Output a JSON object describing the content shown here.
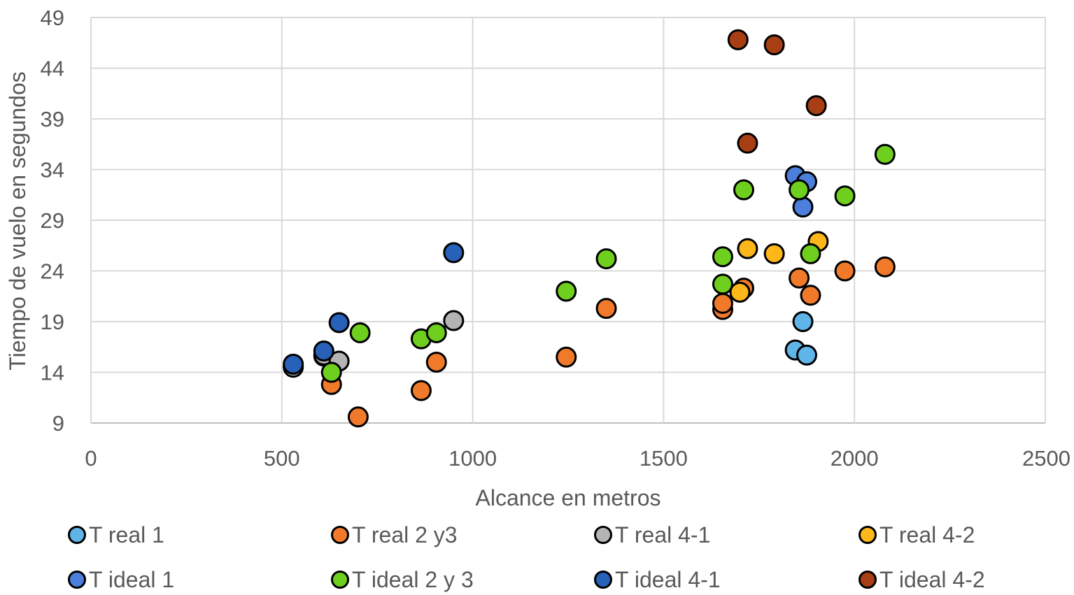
{
  "chart_data": {
    "type": "scatter",
    "title": "",
    "xlabel": "Alcance en metros",
    "ylabel": "Tiempo de vuelo en segundos",
    "xlim": [
      0,
      2500
    ],
    "ylim": [
      9,
      49
    ],
    "x_ticks": [
      "0",
      "500",
      "1000",
      "1500",
      "2000",
      "2500"
    ],
    "y_ticks": [
      "9",
      "14",
      "19",
      "24",
      "29",
      "34",
      "39",
      "44",
      "49"
    ],
    "grid": true,
    "legend_position": "bottom",
    "series": [
      {
        "name": "T real 1",
        "color": "#5fb4e8",
        "points": [
          [
            1845,
            16.2
          ],
          [
            1865,
            19.0
          ],
          [
            1875,
            15.7
          ]
        ]
      },
      {
        "name": "T real 2 y3",
        "color": "#f07a2a",
        "points": [
          [
            530,
            14.6
          ],
          [
            610,
            15.6
          ],
          [
            630,
            12.8
          ],
          [
            700,
            9.6
          ],
          [
            865,
            12.2
          ],
          [
            905,
            15.0
          ],
          [
            1245,
            15.5
          ],
          [
            1350,
            20.3
          ],
          [
            1655,
            20.2
          ],
          [
            1655,
            20.8
          ],
          [
            1710,
            22.3
          ],
          [
            1855,
            23.3
          ],
          [
            1885,
            21.6
          ],
          [
            1975,
            24.0
          ],
          [
            2080,
            24.4
          ]
        ]
      },
      {
        "name": "T real 4-1",
        "color": "#b4b4b4",
        "points": [
          [
            530,
            14.5
          ],
          [
            610,
            15.7
          ],
          [
            650,
            15.1
          ],
          [
            950,
            19.1
          ]
        ]
      },
      {
        "name": "T real 4-2",
        "color": "#fdb71a",
        "points": [
          [
            1700,
            21.9
          ],
          [
            1720,
            26.2
          ],
          [
            1790,
            25.7
          ],
          [
            1905,
            26.9
          ]
        ]
      },
      {
        "name": "T ideal 1",
        "color": "#4c7fdc",
        "points": [
          [
            1845,
            33.4
          ],
          [
            1875,
            32.8
          ],
          [
            1865,
            30.3
          ]
        ]
      },
      {
        "name": "T ideal 2 y 3",
        "color": "#6fcf1f",
        "points": [
          [
            630,
            14.0
          ],
          [
            705,
            17.9
          ],
          [
            865,
            17.3
          ],
          [
            905,
            17.9
          ],
          [
            1245,
            22.0
          ],
          [
            1350,
            25.2
          ],
          [
            1655,
            25.4
          ],
          [
            1655,
            22.7
          ],
          [
            1710,
            32.0
          ],
          [
            1855,
            32.0
          ],
          [
            1885,
            25.7
          ],
          [
            1975,
            31.4
          ],
          [
            2080,
            35.5
          ]
        ]
      },
      {
        "name": "T ideal 4-1",
        "color": "#2761b8",
        "points": [
          [
            530,
            14.8
          ],
          [
            610,
            16.1
          ],
          [
            650,
            18.9
          ],
          [
            950,
            25.8
          ]
        ]
      },
      {
        "name": "T ideal 4-2",
        "color": "#a83f14",
        "points": [
          [
            1695,
            46.8
          ],
          [
            1790,
            46.3
          ],
          [
            1720,
            36.6
          ],
          [
            1900,
            40.3
          ]
        ]
      }
    ]
  }
}
